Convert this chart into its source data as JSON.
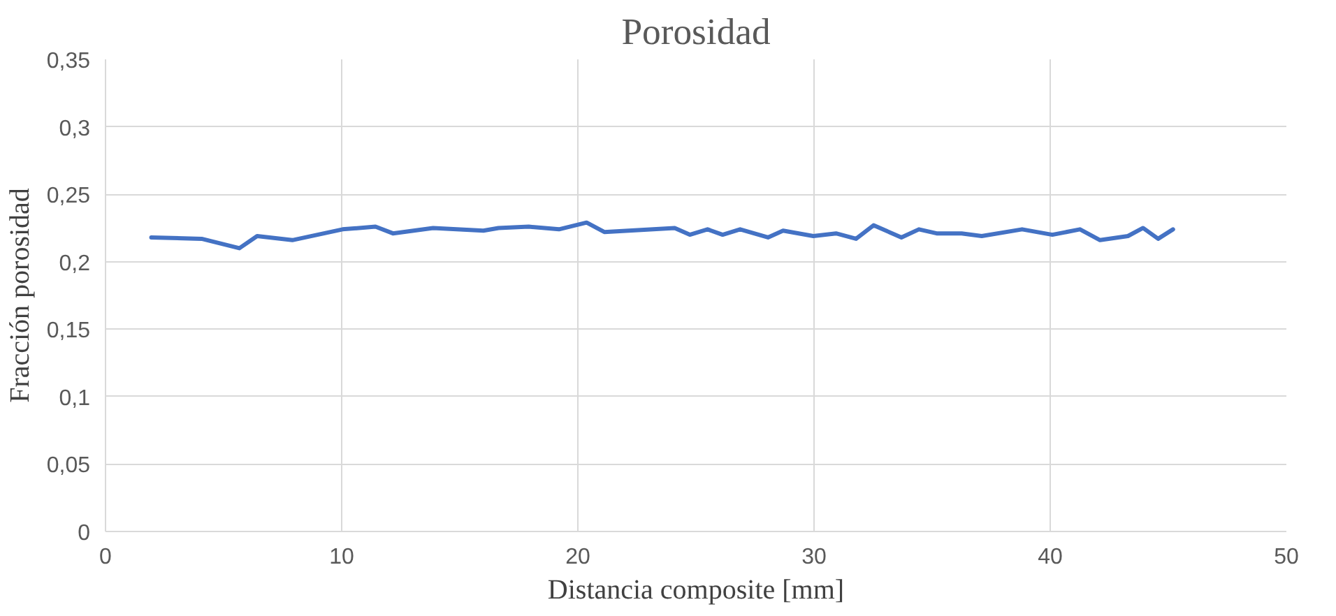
{
  "chart_data": {
    "type": "line",
    "title": "Porosidad",
    "xlabel": "Distancia composite [mm]",
    "ylabel": "Fracción porosidad",
    "xlim": [
      0,
      50
    ],
    "xticks": [
      0,
      10,
      20,
      30,
      40,
      50
    ],
    "ylim": [
      0,
      0.35
    ],
    "yticks": [
      {
        "value": 0,
        "label": "0"
      },
      {
        "value": 0.05,
        "label": "0,05"
      },
      {
        "value": 0.1,
        "label": "0,1"
      },
      {
        "value": 0.15,
        "label": "0,15"
      },
      {
        "value": 0.2,
        "label": "0,2"
      },
      {
        "value": 0.25,
        "label": "0,25"
      },
      {
        "value": 0.3,
        "label": "0,3"
      },
      {
        "value": 0.35,
        "label": "0,35"
      }
    ],
    "grid": true,
    "marker": "none",
    "line_style": "solid",
    "series": [
      {
        "color": "#4472c4",
        "x": [
          1.94,
          4.07,
          5.67,
          6.42,
          7.91,
          10.04,
          11.43,
          12.17,
          13.87,
          16.0,
          16.64,
          17.92,
          19.2,
          20.37,
          21.12,
          24.1,
          24.74,
          25.49,
          26.13,
          26.87,
          28.05,
          28.69,
          29.97,
          30.93,
          31.78,
          32.52,
          33.7,
          34.44,
          35.19,
          36.25,
          37.1,
          38.81,
          40.09,
          41.26,
          42.11,
          43.29,
          43.93,
          44.57,
          45.2
        ],
        "values": [
          0.218,
          0.217,
          0.21,
          0.219,
          0.216,
          0.224,
          0.226,
          0.221,
          0.225,
          0.223,
          0.225,
          0.226,
          0.224,
          0.229,
          0.222,
          0.225,
          0.22,
          0.224,
          0.22,
          0.224,
          0.218,
          0.223,
          0.219,
          0.221,
          0.217,
          0.227,
          0.218,
          0.224,
          0.221,
          0.221,
          0.219,
          0.224,
          0.22,
          0.224,
          0.216,
          0.219,
          0.225,
          0.217,
          0.224
        ]
      }
    ]
  }
}
